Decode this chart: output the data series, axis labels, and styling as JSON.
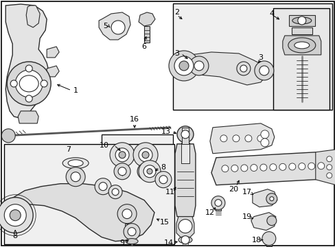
{
  "bg_color": "#ffffff",
  "line_color": "#2a2a2a",
  "fig_w": 4.89,
  "fig_h": 3.6,
  "dpi": 100
}
